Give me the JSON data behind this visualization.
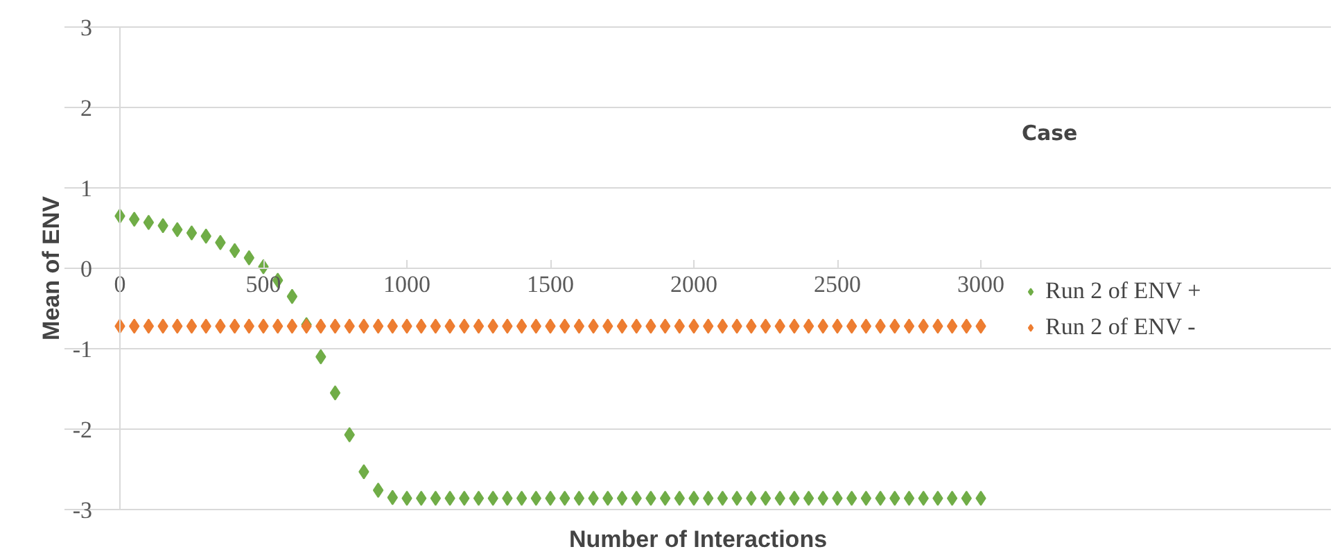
{
  "chart_data": {
    "type": "scatter",
    "marker": "diamond",
    "xlabel": "Number of Interactions",
    "ylabel": "Mean of ENV",
    "legend_title": "Case",
    "legend": "right",
    "grid": "y",
    "xlim": [
      0,
      3000
    ],
    "ylim": [
      -3,
      3
    ],
    "xticks": [
      0,
      500,
      1000,
      1500,
      2000,
      2500,
      3000
    ],
    "yticks": [
      -3,
      -2,
      -1,
      0,
      1,
      2,
      3
    ],
    "series": [
      {
        "name": "Run 2 of ENV +",
        "color": "#70ad47",
        "x": [
          0,
          50,
          100,
          150,
          200,
          250,
          300,
          350,
          400,
          450,
          500,
          550,
          600,
          650,
          700,
          750,
          800,
          850,
          900,
          950,
          1000,
          1050,
          1100,
          1150,
          1200,
          1250,
          1300,
          1350,
          1400,
          1450,
          1500,
          1550,
          1600,
          1650,
          1700,
          1750,
          1800,
          1850,
          1900,
          1950,
          2000,
          2050,
          2100,
          2150,
          2200,
          2250,
          2300,
          2350,
          2400,
          2450,
          2500,
          2550,
          2600,
          2650,
          2700,
          2750,
          2800,
          2850,
          2900,
          2950,
          3000
        ],
        "values": [
          0.65,
          0.61,
          0.57,
          0.53,
          0.48,
          0.44,
          0.4,
          0.32,
          0.22,
          0.13,
          0.02,
          -0.15,
          -0.35,
          -0.7,
          -1.1,
          -1.55,
          -2.07,
          -2.53,
          -2.76,
          -2.85,
          -2.86,
          -2.86,
          -2.86,
          -2.86,
          -2.86,
          -2.86,
          -2.86,
          -2.86,
          -2.86,
          -2.86,
          -2.86,
          -2.86,
          -2.86,
          -2.86,
          -2.86,
          -2.86,
          -2.86,
          -2.86,
          -2.86,
          -2.86,
          -2.86,
          -2.86,
          -2.86,
          -2.86,
          -2.86,
          -2.86,
          -2.86,
          -2.86,
          -2.86,
          -2.86,
          -2.86,
          -2.86,
          -2.86,
          -2.86,
          -2.86,
          -2.86,
          -2.86,
          -2.86,
          -2.86,
          -2.86,
          -2.86
        ]
      },
      {
        "name": "Run 2 of ENV -",
        "color": "#ed7d31",
        "x": [
          0,
          50,
          100,
          150,
          200,
          250,
          300,
          350,
          400,
          450,
          500,
          550,
          600,
          650,
          700,
          750,
          800,
          850,
          900,
          950,
          1000,
          1050,
          1100,
          1150,
          1200,
          1250,
          1300,
          1350,
          1400,
          1450,
          1500,
          1550,
          1600,
          1650,
          1700,
          1750,
          1800,
          1850,
          1900,
          1950,
          2000,
          2050,
          2100,
          2150,
          2200,
          2250,
          2300,
          2350,
          2400,
          2450,
          2500,
          2550,
          2600,
          2650,
          2700,
          2750,
          2800,
          2850,
          2900,
          2950,
          3000
        ],
        "values": [
          -0.72,
          -0.72,
          -0.72,
          -0.72,
          -0.72,
          -0.72,
          -0.72,
          -0.72,
          -0.72,
          -0.72,
          -0.72,
          -0.72,
          -0.72,
          -0.72,
          -0.72,
          -0.72,
          -0.72,
          -0.72,
          -0.72,
          -0.72,
          -0.72,
          -0.72,
          -0.72,
          -0.72,
          -0.72,
          -0.72,
          -0.72,
          -0.72,
          -0.72,
          -0.72,
          -0.72,
          -0.72,
          -0.72,
          -0.72,
          -0.72,
          -0.72,
          -0.72,
          -0.72,
          -0.72,
          -0.72,
          -0.72,
          -0.72,
          -0.72,
          -0.72,
          -0.72,
          -0.72,
          -0.72,
          -0.72,
          -0.72,
          -0.72,
          -0.72,
          -0.72,
          -0.72,
          -0.72,
          -0.72,
          -0.72,
          -0.72,
          -0.72,
          -0.72,
          -0.72,
          -0.72
        ]
      }
    ]
  }
}
